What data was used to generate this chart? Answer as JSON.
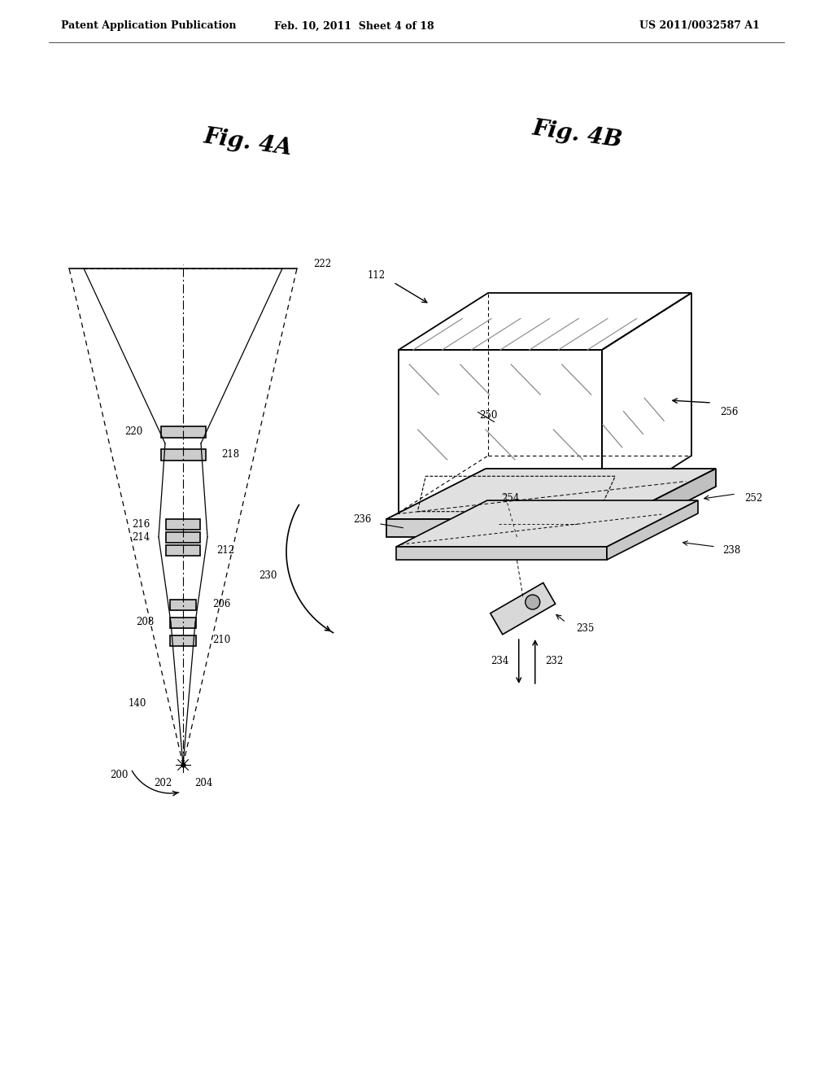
{
  "header_left": "Patent Application Publication",
  "header_center": "Feb. 10, 2011  Sheet 4 of 18",
  "header_right": "US 2011/0032587 A1",
  "fig4a_title": "Fig. 4A",
  "fig4b_title": "Fig. 4B",
  "bg_color": "#ffffff",
  "line_color": "#000000",
  "label_color": "#000000",
  "fig4a_labels": [
    "222",
    "220",
    "218",
    "216",
    "214",
    "212",
    "210",
    "208",
    "206",
    "200",
    "140",
    "202",
    "204"
  ],
  "fig4b_labels": [
    "112",
    "256",
    "250",
    "254",
    "252",
    "236",
    "238",
    "235",
    "234",
    "232",
    "230"
  ]
}
